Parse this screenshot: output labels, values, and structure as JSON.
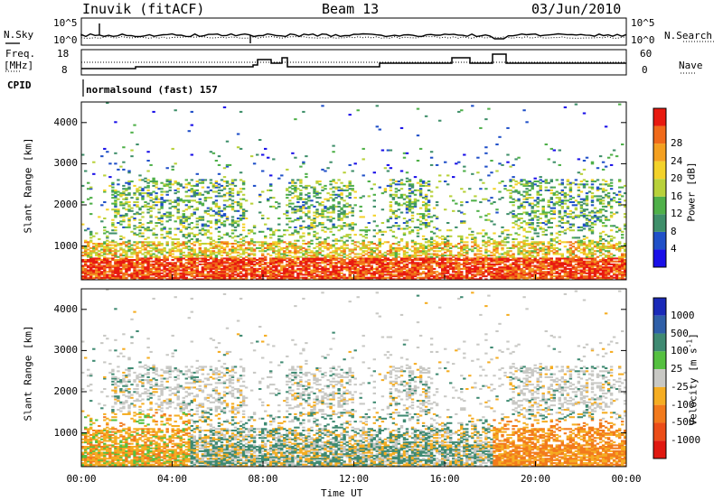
{
  "header": {
    "station": "Inuvik (fitACF)",
    "beam": "Beam 13",
    "date": "03/Jun/2010"
  },
  "top_panels": {
    "nsky_label": "N.Sky",
    "nsearch_label": "N.Search",
    "noise_ticks": [
      "10^5",
      "10^0"
    ],
    "freq_label": "Freq.",
    "freq_unit": "[MHz]",
    "freq_ticks": [
      "18",
      "8"
    ],
    "nave_label": "Nave",
    "nave_ticks": [
      "60",
      "0"
    ],
    "cpid_label": "CPID",
    "cpid_value": "normalsound (fast) 157"
  },
  "chart_data": [
    {
      "type": "heatmap",
      "panel": "power",
      "ylabel": "Slant Range [km]",
      "y_ticks": [
        "1000",
        "2000",
        "3000",
        "4000"
      ],
      "ylim": [
        180,
        4500
      ],
      "colorbar_label": "Power [dB]",
      "colorbar_ticks": [
        "4",
        "8",
        "12",
        "16",
        "20",
        "24",
        "28"
      ],
      "colors": [
        "#1a10e8",
        "#2050c8",
        "#3f8f6a",
        "#4fb049",
        "#b8d13a",
        "#f3d22a",
        "#f4a020",
        "#f06a1a",
        "#e81a10"
      ]
    },
    {
      "type": "heatmap",
      "panel": "velocity",
      "ylabel": "Slant Range [km]",
      "y_ticks": [
        "1000",
        "2000",
        "3000",
        "4000"
      ],
      "ylim": [
        180,
        4500
      ],
      "colorbar_label": "Velocity [m s",
      "colorbar_label_sup": "-1",
      "colorbar_label_end": "]",
      "colorbar_ticks": [
        "1000",
        "500",
        "100",
        "25",
        "-25",
        "-100",
        "-500",
        "-1000"
      ],
      "colors": [
        "#1a2ab8",
        "#2f5fa8",
        "#3f8a72",
        "#55c040",
        "#c8c8c4",
        "#f5ad22",
        "#f27a1c",
        "#ec4d18",
        "#e01810"
      ]
    }
  ],
  "xaxis": {
    "label": "Time UT",
    "ticks": [
      "00:00",
      "04:00",
      "08:00",
      "12:00",
      "16:00",
      "20:00",
      "00:00"
    ]
  }
}
